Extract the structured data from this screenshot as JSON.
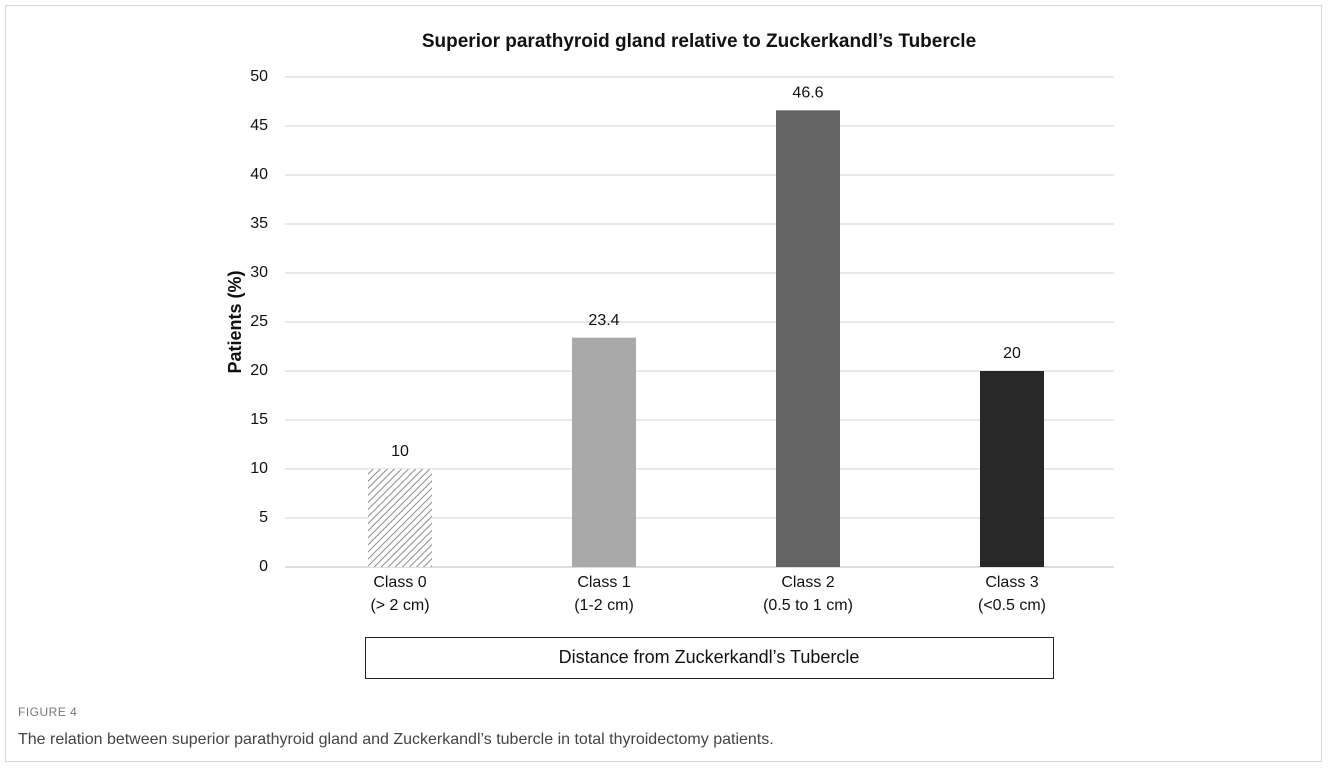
{
  "chart_data": {
    "type": "bar",
    "title": "Superior parathyroid gland relative to Zuckerkandl’s Tubercle",
    "y_label": "Patients (%)",
    "x_label": "Distance from Zuckerkandl’s Tubercle",
    "categories": [
      [
        "Class 0",
        "(> 2 cm)"
      ],
      [
        "Class 1",
        "(1-2 cm)"
      ],
      [
        "Class 2",
        "(0.5 to 1 cm)"
      ],
      [
        "Class 3",
        "(<0.5 cm)"
      ]
    ],
    "values": [
      10,
      23.4,
      46.6,
      20
    ],
    "colors": [
      "#8c8c8c",
      "#a9a9a9",
      "#646464",
      "#282828"
    ],
    "hatched": [
      true,
      false,
      false,
      false
    ],
    "ylim": [
      0,
      50
    ],
    "yticks": [
      0,
      5,
      10,
      15,
      20,
      25,
      30,
      35,
      40,
      45,
      50
    ],
    "grid": true
  },
  "figure": {
    "label": "FIGURE 4",
    "caption": "The relation between superior parathyroid gland and Zuckerkandl’s tubercle in total thyroidectomy patients."
  }
}
